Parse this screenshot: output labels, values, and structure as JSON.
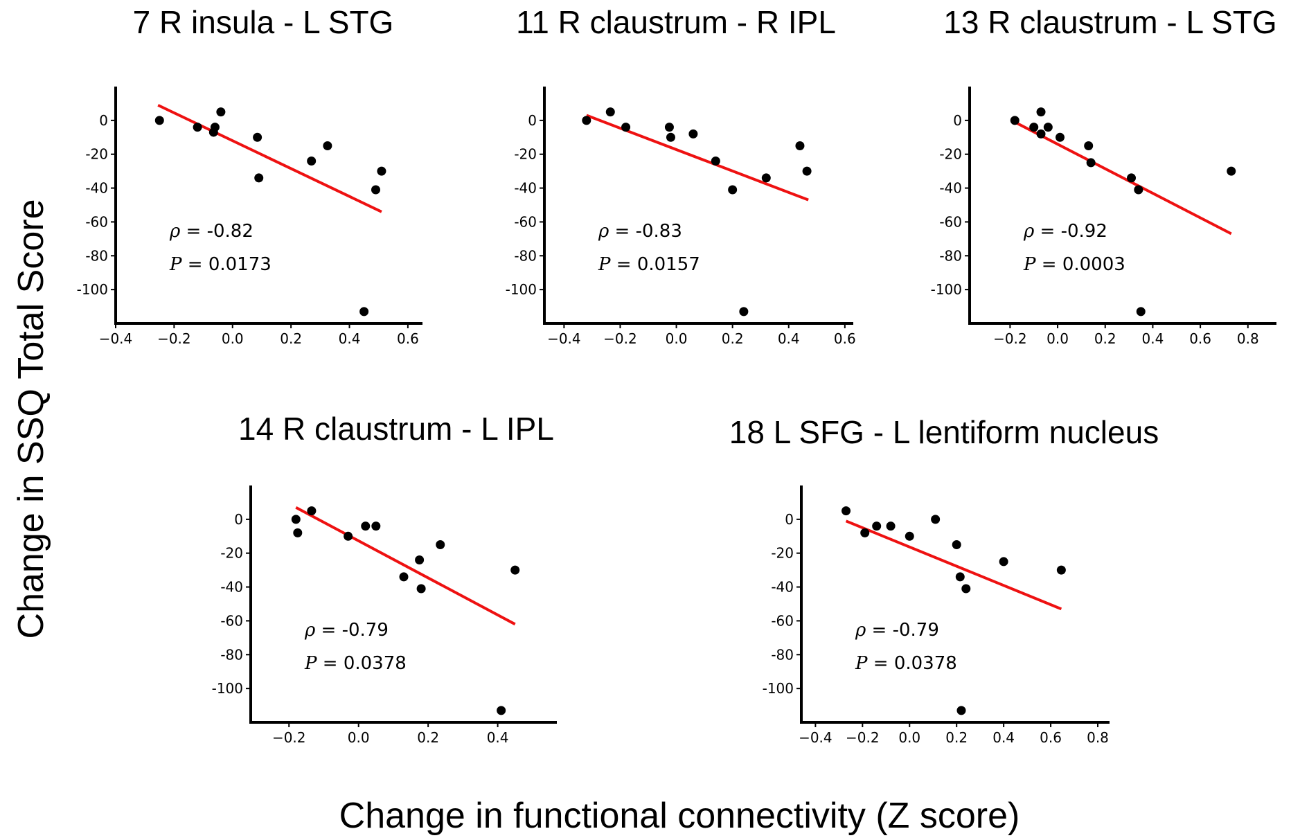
{
  "figure": {
    "ylabel": "Change in SSQ Total Score",
    "xlabel": "Change in functional connectivity (Z score)"
  },
  "colors": {
    "point": "#000000",
    "fit_line": "#ee1111",
    "axis": "#000000"
  },
  "chart_data": [
    {
      "type": "scatter",
      "title": "7 R insula - L STG",
      "xlim": [
        -0.4,
        0.65
      ],
      "ylim": [
        -120,
        20
      ],
      "xticks": [
        -0.4,
        -0.2,
        0.0,
        0.2,
        0.4,
        0.6
      ],
      "xtick_labels": [
        "−0.4",
        "−0.2",
        "0.0",
        "0.2",
        "0.4",
        "0.6"
      ],
      "yticks": [
        0,
        -20,
        -40,
        -60,
        -80,
        -100
      ],
      "ytick_labels": [
        "0",
        "-20",
        "-40",
        "-60",
        "-80",
        "-100"
      ],
      "points": [
        [
          -0.25,
          0
        ],
        [
          -0.12,
          -4
        ],
        [
          -0.065,
          -7
        ],
        [
          -0.06,
          -4
        ],
        [
          -0.04,
          5
        ],
        [
          0.085,
          -10
        ],
        [
          0.09,
          -34
        ],
        [
          0.27,
          -24
        ],
        [
          0.325,
          -15
        ],
        [
          0.45,
          -113
        ],
        [
          0.49,
          -41
        ],
        [
          0.51,
          -30
        ]
      ],
      "fit_line": [
        [
          -0.255,
          9
        ],
        [
          0.51,
          -54
        ]
      ],
      "stats": {
        "rho_symbol": "ρ",
        "rho_text": " = -0.82",
        "p_symbol": "P",
        "p_text": " = 0.0173"
      }
    },
    {
      "type": "scatter",
      "title": "11 R claustrum - R IPL",
      "xlim": [
        -0.47,
        0.63
      ],
      "ylim": [
        -120,
        20
      ],
      "xticks": [
        -0.4,
        -0.2,
        0.0,
        0.2,
        0.4,
        0.6
      ],
      "xtick_labels": [
        "−0.4",
        "−0.2",
        "0.0",
        "0.2",
        "0.4",
        "0.6"
      ],
      "yticks": [
        0,
        -20,
        -40,
        -60,
        -80,
        -100
      ],
      "ytick_labels": [
        "0",
        "-20",
        "-40",
        "-60",
        "-80",
        "-100"
      ],
      "points": [
        [
          -0.32,
          0
        ],
        [
          -0.235,
          5
        ],
        [
          -0.18,
          -4
        ],
        [
          -0.025,
          -4
        ],
        [
          -0.02,
          -10
        ],
        [
          0.06,
          -8
        ],
        [
          0.14,
          -24
        ],
        [
          0.2,
          -41
        ],
        [
          0.24,
          -113
        ],
        [
          0.32,
          -34
        ],
        [
          0.44,
          -15
        ],
        [
          0.465,
          -30
        ]
      ],
      "fit_line": [
        [
          -0.32,
          3
        ],
        [
          0.47,
          -47
        ]
      ],
      "stats": {
        "rho_symbol": "ρ",
        "rho_text": " = -0.83",
        "p_symbol": "P",
        "p_text": " = 0.0157"
      }
    },
    {
      "type": "scatter",
      "title": "13 R claustrum - L STG",
      "xlim": [
        -0.37,
        0.92
      ],
      "ylim": [
        -120,
        20
      ],
      "xticks": [
        -0.2,
        0.0,
        0.2,
        0.4,
        0.6,
        0.8
      ],
      "xtick_labels": [
        "−0.2",
        "0.0",
        "0.2",
        "0.4",
        "0.6",
        "0.8"
      ],
      "yticks": [
        0,
        -20,
        -40,
        -60,
        -80,
        -100
      ],
      "ytick_labels": [
        "0",
        "-20",
        "-40",
        "-60",
        "-80",
        "-100"
      ],
      "points": [
        [
          -0.18,
          0
        ],
        [
          -0.1,
          -4
        ],
        [
          -0.07,
          5
        ],
        [
          -0.07,
          -8
        ],
        [
          -0.04,
          -4
        ],
        [
          0.01,
          -10
        ],
        [
          0.13,
          -15
        ],
        [
          0.14,
          -25
        ],
        [
          0.31,
          -34
        ],
        [
          0.34,
          -41
        ],
        [
          0.35,
          -113
        ],
        [
          0.73,
          -30
        ]
      ],
      "fit_line": [
        [
          -0.18,
          -1
        ],
        [
          0.73,
          -67
        ]
      ],
      "stats": {
        "rho_symbol": "ρ",
        "rho_text": " = -0.92",
        "p_symbol": "P",
        "p_text": " = 0.0003"
      }
    },
    {
      "type": "scatter",
      "title": "14 R claustrum - L IPL",
      "xlim": [
        -0.31,
        0.57
      ],
      "ylim": [
        -120,
        20
      ],
      "xticks": [
        -0.2,
        0.0,
        0.2,
        0.4
      ],
      "xtick_labels": [
        "−0.2",
        "0.0",
        "0.2",
        "0.4"
      ],
      "yticks": [
        0,
        -20,
        -40,
        -60,
        -80,
        -100
      ],
      "ytick_labels": [
        "0",
        "-20",
        "-40",
        "-60",
        "-80",
        "-100"
      ],
      "points": [
        [
          -0.18,
          0
        ],
        [
          -0.175,
          -8
        ],
        [
          -0.135,
          5
        ],
        [
          -0.03,
          -10
        ],
        [
          0.02,
          -4
        ],
        [
          0.05,
          -4
        ],
        [
          0.13,
          -34
        ],
        [
          0.175,
          -24
        ],
        [
          0.18,
          -41
        ],
        [
          0.235,
          -15
        ],
        [
          0.41,
          -113
        ],
        [
          0.45,
          -30
        ]
      ],
      "fit_line": [
        [
          -0.18,
          7
        ],
        [
          0.45,
          -62
        ]
      ],
      "stats": {
        "rho_symbol": "ρ",
        "rho_text": " = -0.79",
        "p_symbol": "P",
        "p_text": " = 0.0378"
      }
    },
    {
      "type": "scatter",
      "title": "18 L SFG - L lentiform nucleus",
      "xlim": [
        -0.46,
        0.85
      ],
      "ylim": [
        -120,
        20
      ],
      "xticks": [
        -0.4,
        -0.2,
        0.0,
        0.2,
        0.4,
        0.6,
        0.8
      ],
      "xtick_labels": [
        "−0.4",
        "−0.2",
        "0.0",
        "0.2",
        "0.4",
        "0.6",
        "0.8"
      ],
      "yticks": [
        0,
        -20,
        -40,
        -60,
        -80,
        -100
      ],
      "ytick_labels": [
        "0",
        "-20",
        "-40",
        "-60",
        "-80",
        "-100"
      ],
      "points": [
        [
          -0.27,
          5
        ],
        [
          -0.19,
          -8
        ],
        [
          -0.14,
          -4
        ],
        [
          -0.08,
          -4
        ],
        [
          0.0,
          -10
        ],
        [
          0.11,
          0
        ],
        [
          0.2,
          -15
        ],
        [
          0.215,
          -34
        ],
        [
          0.22,
          -113
        ],
        [
          0.24,
          -41
        ],
        [
          0.4,
          -25
        ],
        [
          0.645,
          -30
        ]
      ],
      "fit_line": [
        [
          -0.27,
          -1
        ],
        [
          0.645,
          -53
        ]
      ],
      "stats": {
        "rho_symbol": "ρ",
        "rho_text": " = -0.79",
        "p_symbol": "P",
        "p_text": " = 0.0378"
      }
    }
  ]
}
